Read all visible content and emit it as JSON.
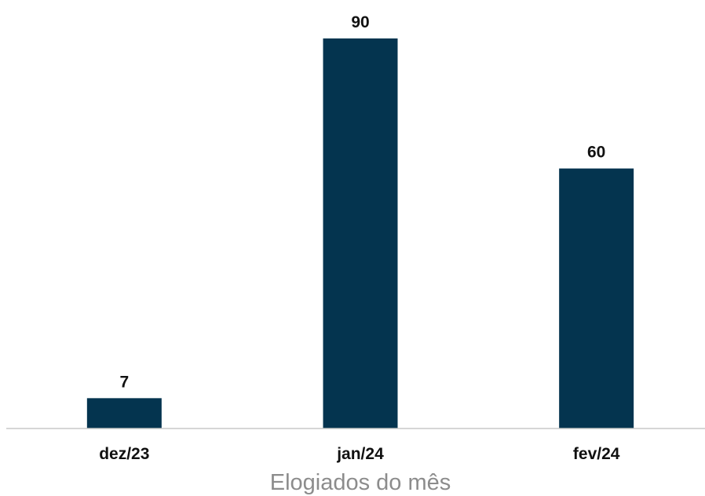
{
  "chart_data": {
    "type": "bar",
    "categories": [
      "dez/23",
      "jan/24",
      "fev/24"
    ],
    "values": [
      7,
      90,
      60
    ],
    "title": "",
    "xlabel": "Elogiados do mês",
    "ylabel": "",
    "ylim": [
      0,
      90
    ],
    "data_labels": [
      "7",
      "90",
      "60"
    ],
    "grid": false,
    "legend": "none",
    "colors": {
      "bar": "#04344f",
      "axis_line": "#c9c9c9",
      "axis_title": "#8c8c8c",
      "label": "#111111"
    }
  }
}
